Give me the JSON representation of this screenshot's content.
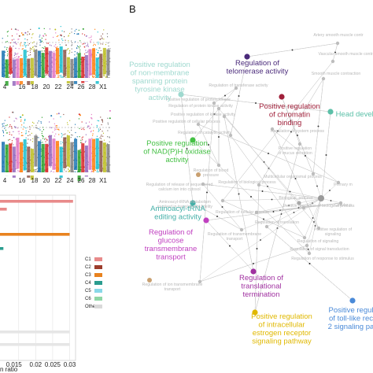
{
  "panel_label": "B",
  "chart_data": [
    {
      "type": "scatter",
      "name": "manhattan-top",
      "x_tick_labels": [
        "4",
        "16",
        "18",
        "20",
        "22",
        "24",
        "26",
        "28",
        "X1"
      ],
      "colors": [
        "#1f77b4",
        "#2ca02c",
        "#d62728",
        "#9467bd",
        "#e377c2",
        "#ff7f0e",
        "#17becf",
        "#8c564b",
        "#bcbd22",
        "#7f7f7f"
      ]
    },
    {
      "type": "scatter",
      "name": "manhattan-bottom",
      "x_tick_labels": [
        "4",
        "16",
        "18",
        "20",
        "22",
        "24",
        "26",
        "28",
        "X1"
      ],
      "colors": [
        "#1f77b4",
        "#2ca02c",
        "#d62728",
        "#9467bd",
        "#e377c2",
        "#ff7f0e",
        "#17becf",
        "#8c564b",
        "#bcbd22",
        "#7f7f7f"
      ]
    },
    {
      "type": "bar",
      "name": "gene-ratio-bars",
      "x_label": "n ratio",
      "x_tick_labels": [
        "0.015",
        "0.02",
        "0.025",
        "0.03"
      ],
      "x_ticks": [
        0.015,
        0.02,
        0.025,
        0.03
      ],
      "bars": [
        {
          "cluster": "C1",
          "value": 0.031,
          "color": "#e88a8a"
        },
        {
          "cluster": "C1",
          "value": 0.0115,
          "color": "#e88a8a"
        },
        {
          "cluster": "C3",
          "value": 0.03,
          "color": "#e8821e"
        },
        {
          "cluster": "C4",
          "value": 0.0105,
          "color": "#2a9d8f"
        },
        {
          "cluster": "Other",
          "value": 0.03,
          "color": "#e6e6e6"
        },
        {
          "cluster": "Other",
          "value": 0.03,
          "color": "#e6e6e6"
        }
      ],
      "legend": [
        {
          "label": "C1",
          "color": "#e88a8a"
        },
        {
          "label": "C2",
          "color": "#9c3d2c"
        },
        {
          "label": "C3",
          "color": "#e8821e"
        },
        {
          "label": "C4",
          "color": "#2a9d8f"
        },
        {
          "label": "C5",
          "color": "#88d8e8"
        },
        {
          "label": "C6",
          "color": "#8fd6a6"
        },
        {
          "label": "Other",
          "color": "#d9d9d9"
        }
      ]
    },
    {
      "type": "network",
      "name": "go-term-network",
      "highlighted_terms": [
        {
          "lines": [
            "Positive regulation",
            "of non-membrane",
            "spanning protein",
            "tyrosine kinase",
            "activity"
          ],
          "color": "#9fd9cf"
        },
        {
          "lines": [
            "Regulation of",
            "telomerase activity"
          ],
          "color": "#4a2a7a"
        },
        {
          "lines": [
            "Positive regulation",
            "of chromatin",
            "binding"
          ],
          "color": "#a0203a"
        },
        {
          "lines": [
            "Head develop"
          ],
          "color": "#5cc0a8"
        },
        {
          "lines": [
            "Positive regulation",
            "of NAD(P)H oxidase",
            "activity"
          ],
          "color": "#44c044"
        },
        {
          "lines": [
            "Aminoacyl-tRNA",
            "editing activity"
          ],
          "color": "#44b0a8"
        },
        {
          "lines": [
            "Regulation of",
            "glucose",
            "transmembrane",
            "transport"
          ],
          "color": "#c040c0"
        },
        {
          "lines": [
            "Regulation of",
            "translational",
            "termination"
          ],
          "color": "#a030a0"
        },
        {
          "lines": [
            "Positive regulation",
            "of intracellular",
            "estrogen receptor",
            "signaling pathway"
          ],
          "color": "#e0b800"
        },
        {
          "lines": [
            "Positive regul",
            "of toll-like rec",
            "2 signaling pa"
          ],
          "color": "#4a8ad8"
        }
      ],
      "minor_terms": [
        {
          "lines": [
            "Artery smooth muscle contr"
          ]
        },
        {
          "lines": [
            "Regulation of transferase activity"
          ]
        },
        {
          "lines": [
            "Positive regulation of protein kinase"
          ]
        },
        {
          "lines": [
            "Regulation of protein kinase activity"
          ]
        },
        {
          "lines": [
            "Positive regulation of kinase activity"
          ]
        },
        {
          "lines": [
            "Positive regulation of cellular process"
          ]
        },
        {
          "lines": [
            "Regulation of catalytic activity"
          ]
        },
        {
          "lines": [
            "Positive regulation",
            "of mucus secretion"
          ]
        },
        {
          "lines": [
            "Regulation of blood",
            "pressure"
          ]
        },
        {
          "lines": [
            "Regulation of release of sequestered",
            "calcium ion into cytosol"
          ]
        },
        {
          "lines": [
            "Aminoacyl-tRNA metabolism",
            "involved in translational fidelity"
          ]
        },
        {
          "lines": [
            "Regulation of biological process"
          ]
        },
        {
          "lines": [
            "Regulation of transmembrane",
            "transport"
          ]
        },
        {
          "lines": [
            "Regulation of ion transmembrane",
            "transport"
          ]
        },
        {
          "lines": [
            "Biological_process"
          ]
        },
        {
          "lines": [
            "Positive regulation of biological process"
          ]
        },
        {
          "lines": [
            "Regulation of cellular process"
          ]
        },
        {
          "lines": [
            "Multicellular organismal process"
          ]
        },
        {
          "lines": [
            "Regulation of translation"
          ]
        },
        {
          "lines": [
            "Regulation of signaling"
          ]
        },
        {
          "lines": [
            "Regulation of signal transduction"
          ]
        },
        {
          "lines": [
            "Regulation of response to stimulus"
          ]
        },
        {
          "lines": [
            "Primary m"
          ]
        },
        {
          "lines": [
            "Cellular p"
          ]
        },
        {
          "lines": [
            "Positive regulation of",
            "signaling"
          ]
        },
        {
          "lines": [
            "Vascular smooth muscle contraction"
          ]
        },
        {
          "lines": [
            "Smooth muscle contraction"
          ]
        },
        {
          "lines": [
            "Regulation of system process"
          ]
        }
      ]
    }
  ]
}
